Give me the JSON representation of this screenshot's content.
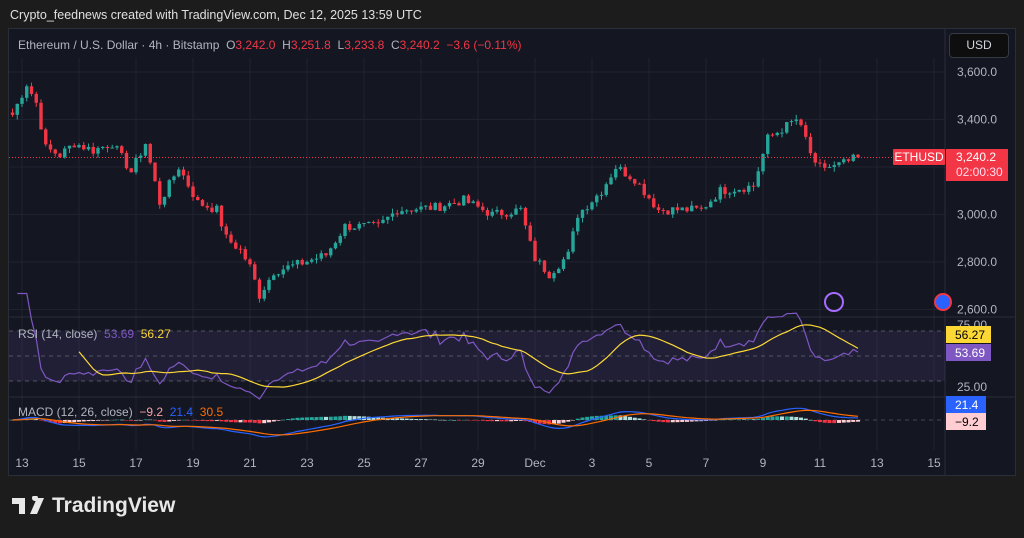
{
  "credit": "Crypto_feednews created with TradingView.com, Dec 12, 2025 13:59 UTC",
  "legend": {
    "symbol": "Ethereum / U.S. Dollar · 4h · Bitstamp",
    "o_label": "O",
    "o": "3,242.0",
    "h_label": "H",
    "h": "3,251.8",
    "l_label": "L",
    "l": "3,233.8",
    "c_label": "C",
    "c": "3,240.2",
    "change": "−3.6 (−0.11%)"
  },
  "currency_button": "USD",
  "price_label": {
    "symbol": "ETHUSD",
    "price": "3,240.2",
    "countdown": "02:00:30"
  },
  "rsi": {
    "label": "RSI (14, close)",
    "value": "53.69",
    "ma": "56.27",
    "axis": [
      "75.00",
      "25.00"
    ]
  },
  "macd": {
    "label": "MACD (12, 26, close)",
    "hist": "−9.2",
    "macd": "21.4",
    "signal": "30.5"
  },
  "logo_text": "TradingView",
  "colors": {
    "up": "#26a69a",
    "down": "#f23645",
    "rsi": "#7e57c2",
    "rsi_ma": "#fdd835",
    "macd": "#2962ff",
    "signal": "#ff6d00",
    "bg": "#141722"
  },
  "chart_data": {
    "type": "candlestick",
    "title": "Ethereum / U.S. Dollar · 4h · Bitstamp",
    "y_ticks": [
      "3,600.0",
      "3,400.0",
      "3,000.0",
      "2,800.0",
      "2,600.0"
    ],
    "ylim": [
      2560,
      3680
    ],
    "x_ticks": [
      "13",
      "15",
      "17",
      "19",
      "21",
      "23",
      "25",
      "27",
      "29",
      "Dec",
      "3",
      "5",
      "7",
      "9",
      "11",
      "13",
      "15"
    ],
    "approx_close_path": [
      [
        "2025-11-12T16:00",
        3420
      ],
      [
        "2025-11-13T04:00",
        3550
      ],
      [
        "2025-11-13T12:00",
        3470
      ],
      [
        "2025-11-13T20:00",
        3280
      ],
      [
        "2025-11-14T08:00",
        3250
      ],
      [
        "2025-11-14T20:00",
        3300
      ],
      [
        "2025-11-15T12:00",
        3270
      ],
      [
        "2025-11-16T04:00",
        3300
      ],
      [
        "2025-11-16T20:00",
        3180
      ],
      [
        "2025-11-17T08:00",
        3300
      ],
      [
        "2025-11-17T20:00",
        3050
      ],
      [
        "2025-11-18T12:00",
        3200
      ],
      [
        "2025-11-19T04:00",
        3050
      ],
      [
        "2025-11-19T20:00",
        3020
      ],
      [
        "2025-11-20T04:00",
        2900
      ],
      [
        "2025-11-20T16:00",
        2850
      ],
      [
        "2025-11-21T00:00",
        2780
      ],
      [
        "2025-11-21T08:00",
        2660
      ],
      [
        "2025-11-21T20:00",
        2760
      ],
      [
        "2025-11-22T16:00",
        2790
      ],
      [
        "2025-11-23T16:00",
        2830
      ],
      [
        "2025-11-24T08:00",
        2950
      ],
      [
        "2025-11-25T12:00",
        2950
      ],
      [
        "2025-11-26T04:00",
        3020
      ],
      [
        "2025-11-27T12:00",
        3030
      ],
      [
        "2025-11-28T12:00",
        3060
      ],
      [
        "2025-11-29T12:00",
        3000
      ],
      [
        "2025-11-30T12:00",
        3020
      ],
      [
        "2025-11-30T23:00",
        2820
      ],
      [
        "2025-12-01T12:00",
        2750
      ],
      [
        "2025-12-02T04:00",
        2830
      ],
      [
        "2025-12-02T12:00",
        3000
      ],
      [
        "2025-12-03T08:00",
        3100
      ],
      [
        "2025-12-03T20:00",
        3200
      ],
      [
        "2025-12-04T12:00",
        3150
      ],
      [
        "2025-12-05T08:00",
        3020
      ],
      [
        "2025-12-06T20:00",
        3020
      ],
      [
        "2025-12-07T12:00",
        3100
      ],
      [
        "2025-12-08T16:00",
        3120
      ],
      [
        "2025-12-09T04:00",
        3320
      ],
      [
        "2025-12-10T04:00",
        3400
      ],
      [
        "2025-12-10T12:00",
        3320
      ],
      [
        "2025-12-10T20:00",
        3200
      ],
      [
        "2025-12-11T12:00",
        3200
      ],
      [
        "2025-12-12T08:00",
        3240
      ]
    ]
  }
}
